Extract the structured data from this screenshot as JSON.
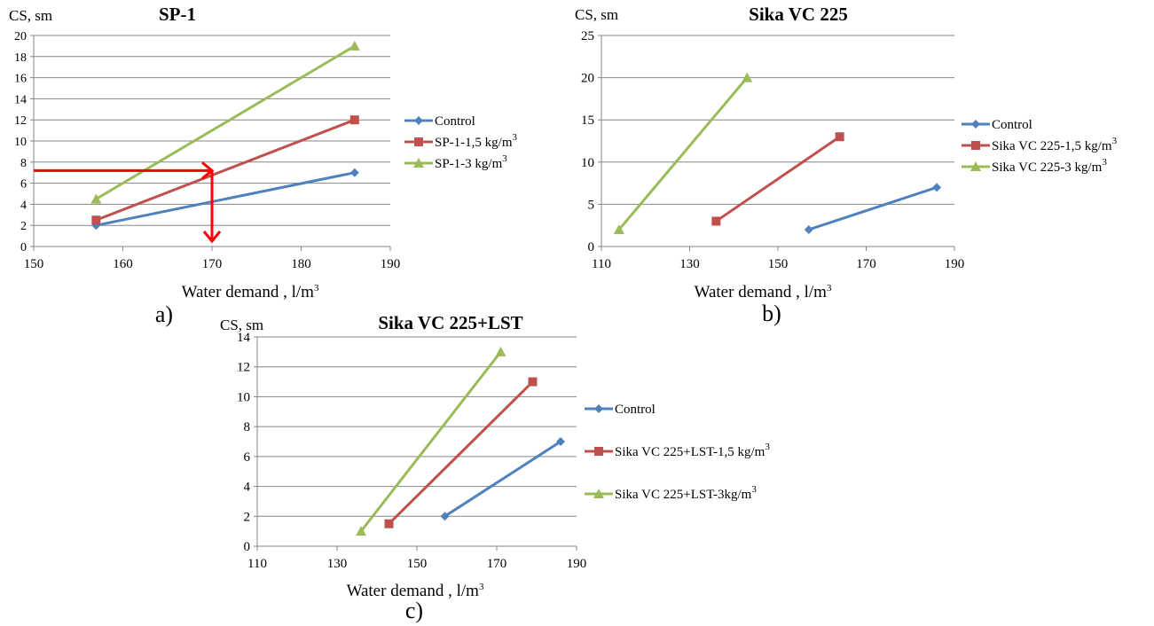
{
  "colors": {
    "control": "#4F81BD",
    "dose_a": "#C0504D",
    "dose_b": "#9BBB59",
    "arrow": "#FF0000",
    "grid": "#868686"
  },
  "chart_data": [
    {
      "type": "line",
      "title": "SP-1",
      "ylabel": "CS, sm",
      "xlabel": "Water demand , l/m",
      "xlabel_sup": "3",
      "caption": "a)",
      "xlim": [
        150,
        190
      ],
      "ylim": [
        0,
        20
      ],
      "xticks": [
        150,
        160,
        170,
        180,
        190
      ],
      "yticks": [
        0,
        2,
        4,
        6,
        8,
        10,
        12,
        14,
        16,
        18,
        20
      ],
      "grid": "horizontal",
      "legend_position": "right",
      "series": [
        {
          "name": "Control",
          "sup": "",
          "marker": "diamond",
          "color": "#4F81BD",
          "points": [
            [
              157,
              2
            ],
            [
              186,
              7
            ]
          ]
        },
        {
          "name": "SP-1-1,5 kg/m",
          "sup": "3",
          "marker": "square",
          "color": "#C0504D",
          "points": [
            [
              157,
              2.5
            ],
            [
              186,
              12
            ]
          ]
        },
        {
          "name": "SP-1-3 kg/m",
          "sup": "3",
          "marker": "triangle",
          "color": "#9BBB59",
          "points": [
            [
              157,
              4.5
            ],
            [
              186,
              19
            ]
          ]
        }
      ],
      "annotation": {
        "type": "arrow-readout",
        "y": 7.2,
        "x": 170,
        "color": "#FF0000"
      }
    },
    {
      "type": "line",
      "title": "Sika VC 225",
      "ylabel": "CS, sm",
      "xlabel": "Water demand , l/m",
      "xlabel_sup": "3",
      "caption": "b)",
      "xlim": [
        110,
        190
      ],
      "ylim": [
        0,
        25
      ],
      "xticks": [
        110,
        130,
        150,
        170,
        190
      ],
      "yticks": [
        0,
        5,
        10,
        15,
        20,
        25
      ],
      "grid": "horizontal",
      "legend_position": "right",
      "series": [
        {
          "name": "Control",
          "sup": "",
          "marker": "diamond",
          "color": "#4F81BD",
          "points": [
            [
              157,
              2
            ],
            [
              186,
              7
            ]
          ]
        },
        {
          "name": "Sika VC 225-1,5 kg/m",
          "sup": "3",
          "marker": "square",
          "color": "#C0504D",
          "points": [
            [
              136,
              3
            ],
            [
              164,
              13
            ]
          ]
        },
        {
          "name": "Sika VC 225-3 kg/m",
          "sup": "3",
          "marker": "triangle",
          "color": "#9BBB59",
          "points": [
            [
              114,
              2
            ],
            [
              143,
              20
            ]
          ]
        }
      ]
    },
    {
      "type": "line",
      "title": "Sika VC 225+LST",
      "ylabel": "CS, sm",
      "xlabel": "Water demand , l/m",
      "xlabel_sup": "3",
      "caption": "c)",
      "xlim": [
        110,
        190
      ],
      "ylim": [
        0,
        14
      ],
      "xticks": [
        110,
        130,
        150,
        170,
        190
      ],
      "yticks": [
        0,
        2,
        4,
        6,
        8,
        10,
        12,
        14
      ],
      "grid": "horizontal",
      "legend_position": "right",
      "series": [
        {
          "name": "Control",
          "sup": "",
          "marker": "diamond",
          "color": "#4F81BD",
          "points": [
            [
              157,
              2
            ],
            [
              186,
              7
            ]
          ]
        },
        {
          "name": "Sika VC 225+LST-1,5 kg/m",
          "sup": "3",
          "marker": "square",
          "color": "#C0504D",
          "points": [
            [
              143,
              1.5
            ],
            [
              179,
              11
            ]
          ]
        },
        {
          "name": "Sika VC 225+LST-3kg/m",
          "sup": "3",
          "marker": "triangle",
          "color": "#9BBB59",
          "points": [
            [
              136,
              1
            ],
            [
              171,
              13
            ]
          ]
        }
      ]
    }
  ]
}
